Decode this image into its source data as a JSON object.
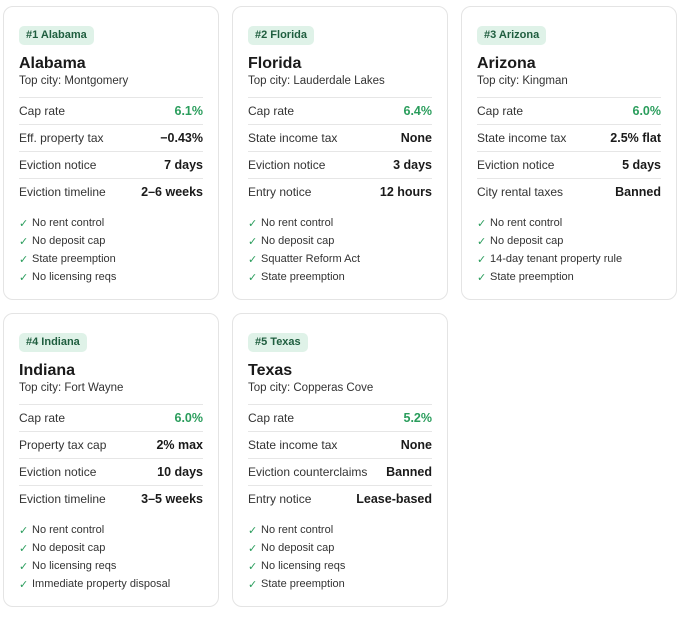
{
  "menu": {
    "label": "⋯"
  },
  "cards": [
    {
      "rank": "#1 Alabama",
      "name": "Alabama",
      "top_city": "Top city: Montgomery",
      "metrics": [
        {
          "label": "Cap rate",
          "value": "6.1%"
        },
        {
          "label": "Eff. property tax",
          "value": "−0.43%"
        },
        {
          "label": "Eviction notice",
          "value": "7 days"
        },
        {
          "label": "Eviction timeline",
          "value": "2–6 weeks"
        }
      ],
      "features": [
        "No rent control",
        "No deposit cap",
        "State preemption",
        "No licensing reqs"
      ]
    },
    {
      "rank": "#2 Florida",
      "name": "Florida",
      "top_city": "Top city: Lauderdale Lakes",
      "metrics": [
        {
          "label": "Cap rate",
          "value": "6.4%"
        },
        {
          "label": "State income tax",
          "value": "None"
        },
        {
          "label": "Eviction notice",
          "value": "3 days"
        },
        {
          "label": "Entry notice",
          "value": "12 hours"
        }
      ],
      "features": [
        "No rent control",
        "No deposit cap",
        "Squatter Reform Act",
        "State preemption"
      ]
    },
    {
      "rank": "#3 Arizona",
      "name": "Arizona",
      "top_city": "Top city: Kingman",
      "metrics": [
        {
          "label": "Cap rate",
          "value": "6.0%"
        },
        {
          "label": "State income tax",
          "value": "2.5% flat"
        },
        {
          "label": "Eviction notice",
          "value": "5 days"
        },
        {
          "label": "City rental taxes",
          "value": "Banned"
        }
      ],
      "features": [
        "No rent control",
        "No deposit cap",
        "14-day tenant property rule",
        "State preemption"
      ]
    },
    {
      "rank": "#4 Indiana",
      "name": "Indiana",
      "top_city": "Top city: Fort Wayne",
      "metrics": [
        {
          "label": "Cap rate",
          "value": "6.0%"
        },
        {
          "label": "Property tax cap",
          "value": "2% max"
        },
        {
          "label": "Eviction notice",
          "value": "10 days"
        },
        {
          "label": "Eviction timeline",
          "value": "3–5 weeks"
        }
      ],
      "features": [
        "No rent control",
        "No deposit cap",
        "No licensing reqs",
        "Immediate property disposal"
      ]
    },
    {
      "rank": "#5 Texas",
      "name": "Texas",
      "top_city": "Top city: Copperas Cove",
      "metrics": [
        {
          "label": "Cap rate",
          "value": "5.2%"
        },
        {
          "label": "State income tax",
          "value": "None"
        },
        {
          "label": "Eviction counterclaims",
          "value": "Banned"
        },
        {
          "label": "Entry notice",
          "value": "Lease-based"
        }
      ],
      "features": [
        "No rent control",
        "No deposit cap",
        "No licensing reqs",
        "State preemption"
      ]
    }
  ]
}
